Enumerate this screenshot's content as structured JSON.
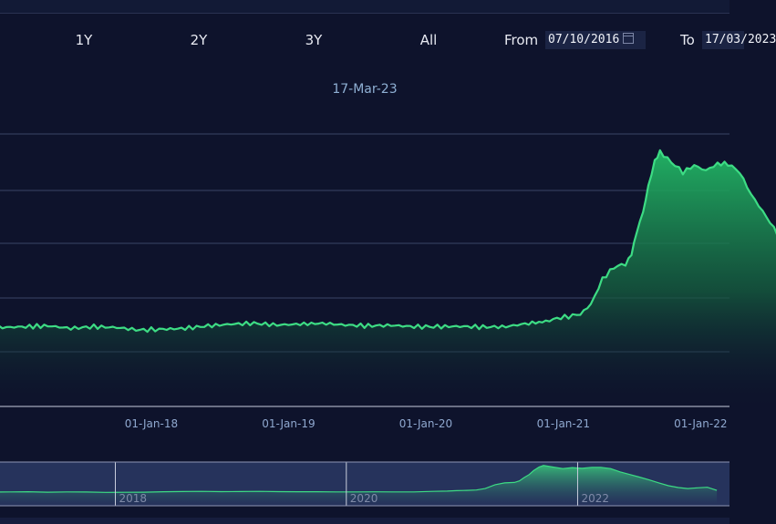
{
  "toolbar": {
    "ranges": [
      "1Y",
      "2Y",
      "3Y",
      "All"
    ],
    "from_label": "From",
    "from_value": "07/10/2016",
    "to_label": "To",
    "to_value": "17/03/2023"
  },
  "hover_date": "17-Mar-23",
  "colors": {
    "background": "#0e132c",
    "line": "#3ddc84",
    "fill_top": "#22b866",
    "grid": "#3a4466",
    "navigator_bg": "#26335c"
  },
  "chart_data": {
    "type": "area",
    "x": [
      "2016-10-07",
      "2016-12-01",
      "2017-02-01",
      "2017-04-01",
      "2017-06-01",
      "2017-08-01",
      "2017-10-01",
      "2017-12-01",
      "2018-02-01",
      "2018-04-01",
      "2018-06-01",
      "2018-08-01",
      "2018-10-01",
      "2018-12-01",
      "2019-02-01",
      "2019-04-01",
      "2019-06-01",
      "2019-08-01",
      "2019-10-01",
      "2019-12-01",
      "2020-02-01",
      "2020-04-01",
      "2020-06-01",
      "2020-08-01",
      "2020-10-01",
      "2020-11-15",
      "2020-12-15",
      "2021-01-15",
      "2021-02-15",
      "2021-03-15",
      "2021-04-15",
      "2021-05-15",
      "2021-06-15",
      "2021-07-01",
      "2021-07-15",
      "2021-08-01",
      "2021-08-15",
      "2021-09-01",
      "2021-09-15",
      "2021-10-15",
      "2021-11-15",
      "2021-12-15",
      "2022-01-15",
      "2022-02-15",
      "2022-03-15",
      "2022-04-15",
      "2022-05-15",
      "2022-06-15",
      "2022-07-15",
      "2022-08-15",
      "2022-09-15",
      "2022-10-15",
      "2022-11-15",
      "2022-12-15",
      "2023-01-15",
      "2023-02-15",
      "2023-03-17"
    ],
    "y": [
      4.6,
      4.65,
      4.7,
      4.75,
      4.6,
      4.7,
      4.65,
      4.5,
      4.55,
      4.6,
      4.75,
      4.85,
      4.9,
      4.8,
      4.85,
      4.9,
      4.8,
      4.75,
      4.78,
      4.7,
      4.7,
      4.72,
      4.68,
      4.7,
      4.9,
      5.0,
      5.2,
      5.3,
      5.45,
      6.0,
      7.5,
      8.2,
      8.4,
      9.0,
      10.2,
      11.5,
      13.0,
      14.4,
      15.0,
      14.4,
      13.8,
      14.2,
      13.9,
      14.3,
      14.3,
      13.8,
      12.5,
      11.5,
      10.5,
      9.4,
      8.2,
      7.1,
      6.4,
      6.0,
      6.3,
      6.5,
      5.3
    ],
    "xlabel": "",
    "ylabel": "",
    "x_ticks": [
      "01-Jan-18",
      "01-Jan-19",
      "01-Jan-20",
      "01-Jan-21",
      "01-Jan-22"
    ],
    "navigator_ticks": [
      "2018",
      "2020",
      "2022"
    ],
    "y_grid": true,
    "ylim": [
      0,
      16
    ]
  }
}
